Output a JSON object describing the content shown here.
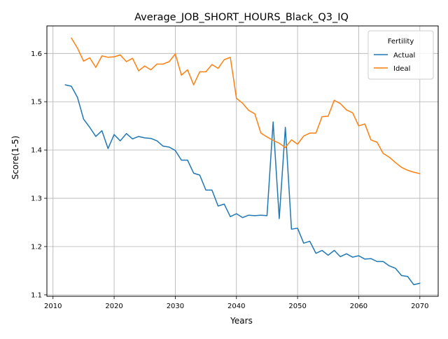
{
  "chart_data": {
    "type": "line",
    "title": "Average_JOB_SHORT_HOURS_Black_Q3_IQ",
    "xlabel": "Years",
    "ylabel": "Score(1-5)",
    "xlim": [
      2009,
      2073
    ],
    "ylim": [
      1.097,
      1.657
    ],
    "xticks": [
      2010,
      2020,
      2030,
      2040,
      2050,
      2060,
      2070
    ],
    "yticks": [
      1.1,
      1.2,
      1.3,
      1.4,
      1.5,
      1.6
    ],
    "ytick_labels": [
      "1.1",
      "1.2",
      "1.3",
      "1.4",
      "1.5",
      "1.6"
    ],
    "grid": true,
    "legend": {
      "title": "Fertility",
      "placement": "top-right"
    },
    "series": [
      {
        "name": "Actual",
        "color": "#1f77b4",
        "x": [
          2012,
          2013,
          2014,
          2015,
          2016,
          2017,
          2018,
          2019,
          2020,
          2021,
          2022,
          2023,
          2024,
          2025,
          2026,
          2027,
          2028,
          2029,
          2030,
          2031,
          2032,
          2033,
          2034,
          2035,
          2036,
          2037,
          2038,
          2039,
          2040,
          2041,
          2042,
          2043,
          2044,
          2045,
          2046,
          2047,
          2048,
          2049,
          2050,
          2051,
          2052,
          2053,
          2054,
          2055,
          2056,
          2057,
          2058,
          2059,
          2060,
          2061,
          2062,
          2063,
          2064,
          2065,
          2066,
          2067,
          2068,
          2069,
          2070
        ],
        "y": [
          1.535,
          1.532,
          1.509,
          1.464,
          1.447,
          1.428,
          1.44,
          1.403,
          1.432,
          1.419,
          1.434,
          1.423,
          1.428,
          1.425,
          1.424,
          1.419,
          1.408,
          1.406,
          1.399,
          1.379,
          1.379,
          1.352,
          1.348,
          1.317,
          1.317,
          1.284,
          1.288,
          1.262,
          1.268,
          1.26,
          1.265,
          1.264,
          1.265,
          1.264,
          1.458,
          1.258,
          1.447,
          1.236,
          1.238,
          1.207,
          1.211,
          1.186,
          1.192,
          1.182,
          1.192,
          1.179,
          1.185,
          1.178,
          1.181,
          1.174,
          1.175,
          1.169,
          1.169,
          1.16,
          1.155,
          1.14,
          1.138,
          1.121,
          1.124
        ]
      },
      {
        "name": "Ideal",
        "color": "#ff7f0e",
        "x": [
          2013,
          2014,
          2015,
          2016,
          2017,
          2018,
          2019,
          2020,
          2021,
          2022,
          2023,
          2024,
          2025,
          2026,
          2027,
          2028,
          2029,
          2030,
          2031,
          2032,
          2033,
          2034,
          2035,
          2036,
          2037,
          2038,
          2039,
          2040,
          2041,
          2042,
          2043,
          2044,
          2045,
          2046,
          2047,
          2048,
          2049,
          2050,
          2051,
          2052,
          2053,
          2054,
          2055,
          2056,
          2057,
          2058,
          2059,
          2060,
          2061,
          2062,
          2063,
          2064,
          2065,
          2066,
          2067,
          2068,
          2069,
          2070
        ],
        "y": [
          1.632,
          1.611,
          1.584,
          1.591,
          1.571,
          1.595,
          1.592,
          1.593,
          1.597,
          1.583,
          1.59,
          1.564,
          1.574,
          1.566,
          1.578,
          1.578,
          1.583,
          1.599,
          1.555,
          1.566,
          1.535,
          1.562,
          1.562,
          1.577,
          1.569,
          1.587,
          1.592,
          1.507,
          1.497,
          1.482,
          1.475,
          1.435,
          1.427,
          1.42,
          1.414,
          1.405,
          1.421,
          1.412,
          1.429,
          1.435,
          1.435,
          1.469,
          1.47,
          1.503,
          1.496,
          1.483,
          1.477,
          1.45,
          1.454,
          1.421,
          1.416,
          1.393,
          1.385,
          1.374,
          1.364,
          1.358,
          1.354,
          1.351
        ]
      }
    ]
  }
}
